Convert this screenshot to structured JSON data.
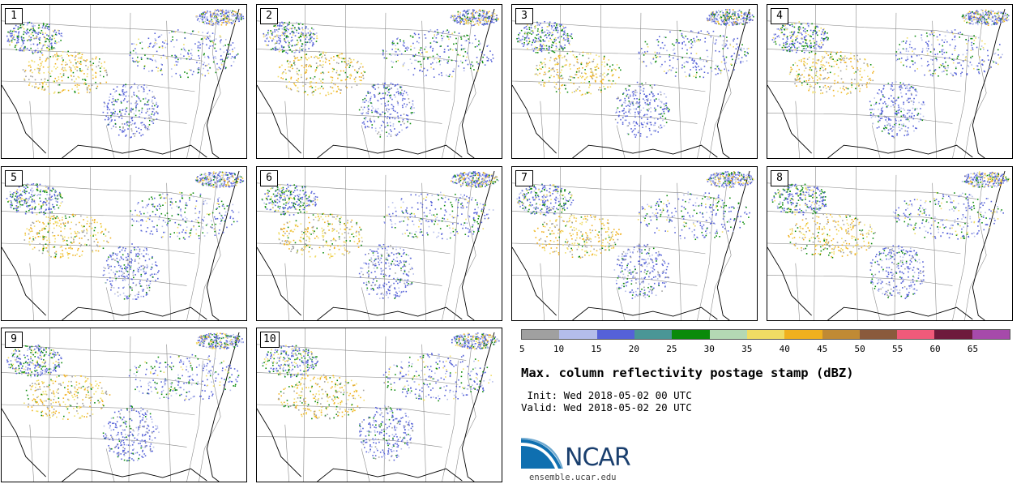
{
  "panels": [
    "1",
    "2",
    "3",
    "4",
    "5",
    "6",
    "7",
    "8",
    "9",
    "10"
  ],
  "colorbar": {
    "colors": [
      "#a0a0a0",
      "#b4bdea",
      "#5561d8",
      "#4a9696",
      "#0a8a0a",
      "#b4d8b4",
      "#f0dc64",
      "#f0b01e",
      "#c08a34",
      "#8a5a3c",
      "#f05a7a",
      "#6e1a3c",
      "#a64aaa"
    ],
    "ticks": [
      "5",
      "10",
      "15",
      "20",
      "25",
      "30",
      "35",
      "40",
      "45",
      "50",
      "55",
      "60",
      "65"
    ]
  },
  "title": "Max. column reflectivity postage stamp (dBZ)",
  "init": " Init: Wed 2018-05-02 00 UTC",
  "valid": "Valid: Wed 2018-05-02 20 UTC",
  "logo": {
    "name": "NCAR",
    "url": "ensemble.ucar.edu"
  }
}
